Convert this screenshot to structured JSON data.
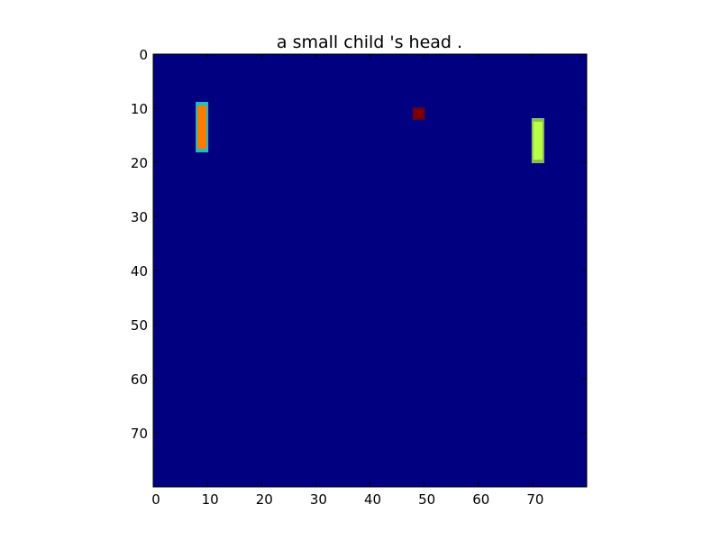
{
  "chart_data": {
    "type": "heatmap",
    "title": "a small child 's head .",
    "xlabel": "",
    "ylabel": "",
    "xlim": [
      0,
      80
    ],
    "ylim": [
      80,
      0
    ],
    "xticks": [
      0,
      10,
      20,
      30,
      40,
      50,
      60,
      70
    ],
    "yticks": [
      0,
      10,
      20,
      30,
      40,
      50,
      60,
      70
    ],
    "grid": false,
    "colormap": "jet",
    "background_color": "#000080",
    "highlights": [
      {
        "name": "",
        "x_start": 8,
        "x_end": 10,
        "y_start": 9,
        "y_end": 18,
        "color": "#ff7a00",
        "edge_color": "#28ffd8"
      },
      {
        "name": "",
        "x_start": 48,
        "x_end": 50,
        "y_start": 10,
        "y_end": 12,
        "color": "#800000",
        "edge_color": "#800000"
      },
      {
        "name": "",
        "x_start": 70,
        "x_end": 72,
        "y_start": 12,
        "y_end": 20,
        "color": "#b8ff46",
        "edge_color": "#b8ff46"
      }
    ]
  }
}
